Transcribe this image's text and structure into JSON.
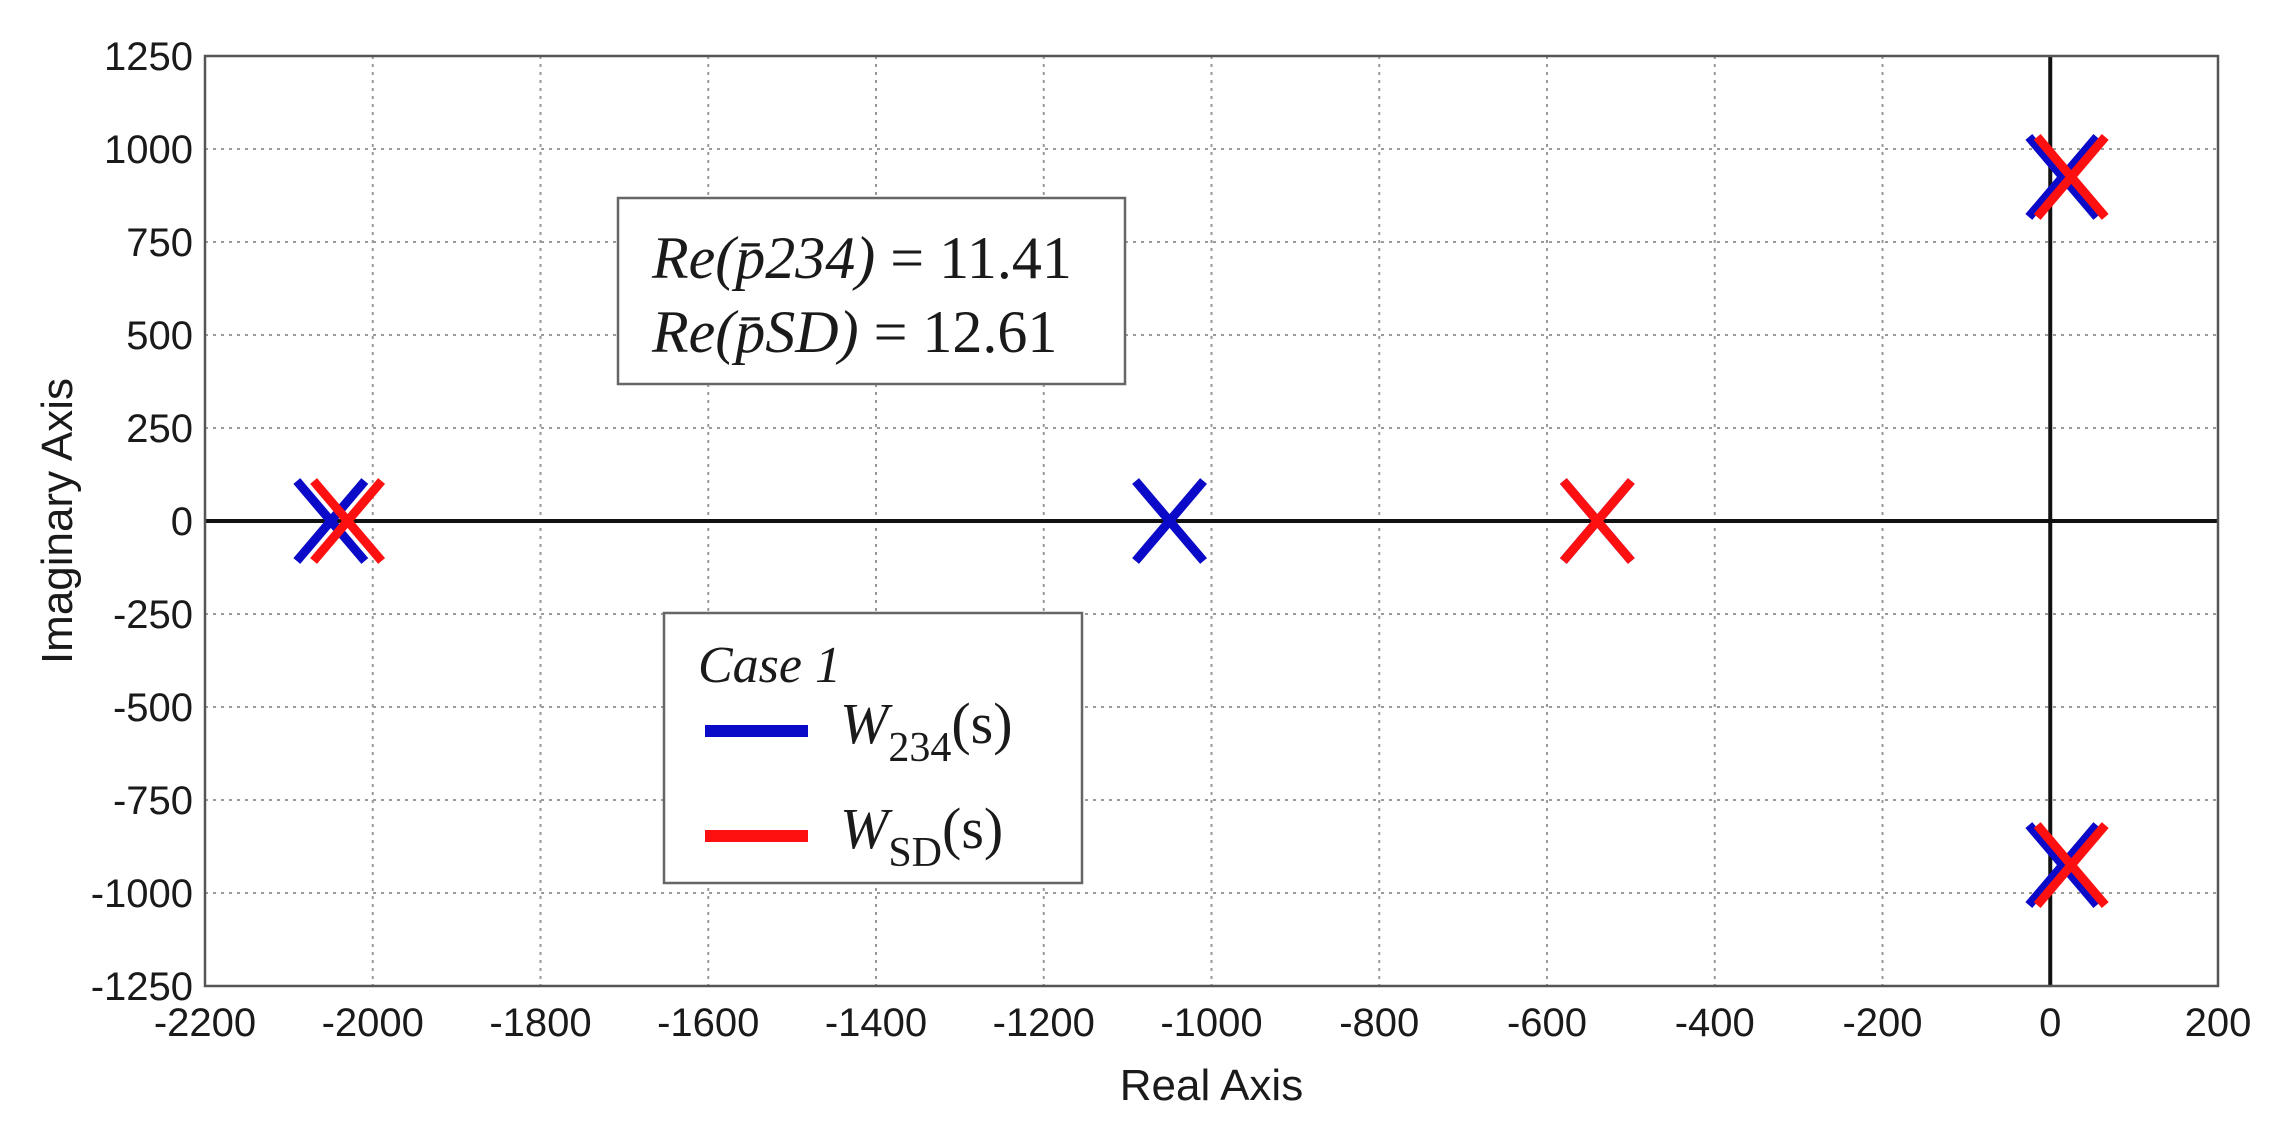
{
  "chart_data": {
    "type": "scatter",
    "title": "",
    "xlabel": "Real Axis",
    "ylabel": "Imaginary Axis",
    "xlim": [
      -2200,
      200
    ],
    "ylim": [
      -1250,
      1250
    ],
    "xticks": [
      -2200,
      -2000,
      -1800,
      -1600,
      -1400,
      -1200,
      -1000,
      -800,
      -600,
      -400,
      -200,
      0,
      200
    ],
    "yticks": [
      1250,
      1000,
      750,
      500,
      250,
      0,
      -250,
      -500,
      -750,
      -1000,
      -1250
    ],
    "grid": true,
    "legend": {
      "placement": "lower-left-center",
      "title": "Case 1",
      "entries": [
        {
          "base": "W",
          "sub": "234",
          "tail": "(s)",
          "color": "#0a0ac8"
        },
        {
          "base": "W",
          "sub": "SD",
          "tail": "(s)",
          "color": "#ff1010"
        }
      ]
    },
    "annotation": {
      "lines": [
        {
          "lhs": "Re(p̄234)",
          "eq": " = ",
          "rhs": "11.41"
        },
        {
          "lhs": "Re(p̄SD)",
          "eq": " = ",
          "rhs": "12.61"
        }
      ]
    },
    "series": [
      {
        "name": "W234(s)",
        "color": "#0a0ac8",
        "marker": "x",
        "points": [
          {
            "x": -2050,
            "y": 0
          },
          {
            "x": -1050,
            "y": 0
          },
          {
            "x": -540,
            "y": 0
          },
          {
            "x": 15,
            "y": 925
          },
          {
            "x": 15,
            "y": -925
          }
        ]
      },
      {
        "name": "WSD(s)",
        "color": "#ff1010",
        "marker": "x",
        "points": [
          {
            "x": -2030,
            "y": 0
          },
          {
            "x": -540,
            "y": 0
          },
          {
            "x": 25,
            "y": 925
          },
          {
            "x": 25,
            "y": -925
          }
        ]
      }
    ]
  }
}
